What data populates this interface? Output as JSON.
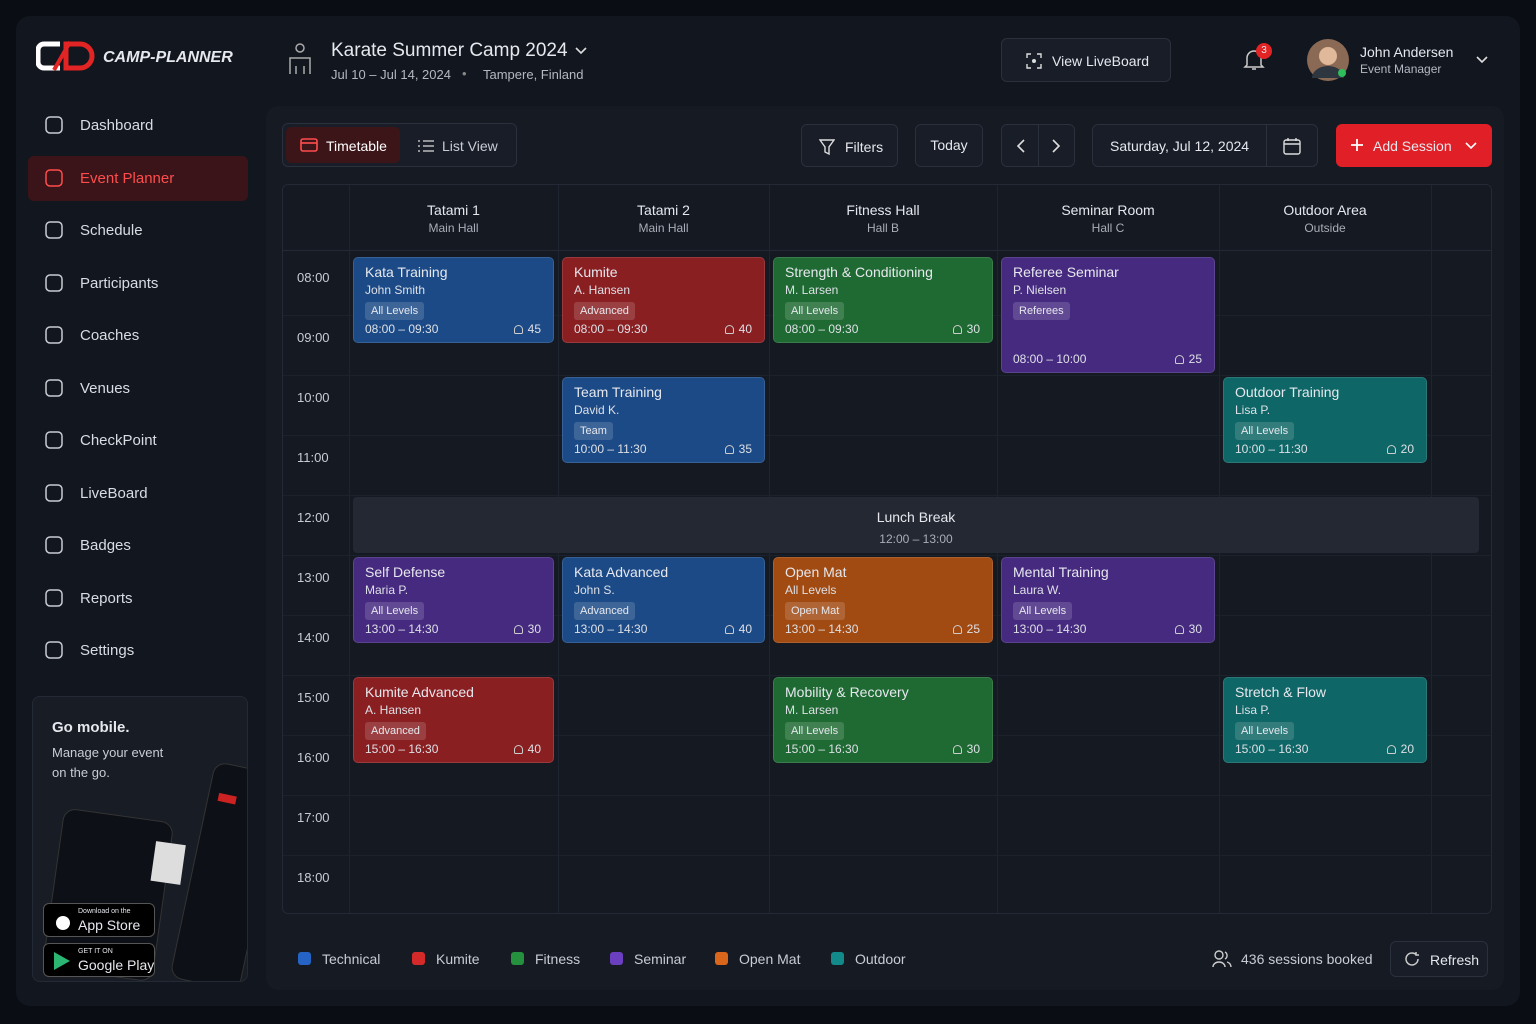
{
  "brand": "CAMP-PLANNER",
  "nav": [
    "Dashboard",
    "Event Planner",
    "Schedule",
    "Participants",
    "Coaches",
    "Venues",
    "CheckPoint",
    "LiveBoard",
    "Badges",
    "Reports",
    "Settings"
  ],
  "active_nav": 1,
  "promo": {
    "title": "Go mobile.",
    "text": "Manage your event on the go.",
    "app_store_small": "Download on the",
    "app_store": "App Store",
    "google_play_small": "GET IT ON",
    "google_play": "Google Play"
  },
  "header": {
    "event": "Karate Summer Camp 2024",
    "dates": "Jul 10 – Jul 14, 2024",
    "location": "Tampere, Finland",
    "liveboard": "View LiveBoard",
    "notifications": 3,
    "user": "John Andersen",
    "role": "Event Manager"
  },
  "toolbar": {
    "timetable": "Timetable",
    "list_view": "List View",
    "filters": "Filters",
    "today": "Today",
    "date": "Saturday, Jul 12, 2024",
    "add_session": "Add Session"
  },
  "times": [
    "08:00",
    "09:00",
    "10:00",
    "11:00",
    "12:00",
    "13:00",
    "14:00",
    "15:00",
    "16:00",
    "17:00",
    "18:00"
  ],
  "venues": [
    {
      "name": "Tatami 1",
      "sub": "Main Hall",
      "sessions": [
        {
          "title": "Kata Training",
          "coach": "John Smith",
          "level": "All Levels",
          "time": "08:00 – 09:30",
          "count": 45,
          "color": "#1c4a86"
        },
        {
          "title": "Self Defense",
          "coach": "Maria P.",
          "level": "All Levels",
          "time": "13:00 – 14:30",
          "count": 30,
          "color": "#462a80"
        },
        {
          "title": "Kumite Advanced",
          "coach": "A. Hansen",
          "level": "Advanced",
          "time": "15:00 – 16:30",
          "count": 40,
          "color": "#8a1f22"
        }
      ]
    },
    {
      "name": "Tatami 2",
      "sub": "Main Hall",
      "sessions": [
        {
          "title": "Kumite",
          "coach": "A. Hansen",
          "level": "Advanced",
          "time": "08:00 – 09:30",
          "count": 40,
          "color": "#8a1f22"
        },
        {
          "title": "Team Training",
          "coach": "David K.",
          "level": "Team",
          "time": "10:00 – 11:30",
          "count": 35,
          "color": "#1c4a86"
        },
        {
          "title": "Kata Advanced",
          "coach": "John S.",
          "level": "Advanced",
          "time": "13:00 – 14:30",
          "count": 40,
          "color": "#1c4a86"
        }
      ]
    },
    {
      "name": "Fitness Hall",
      "sub": "Hall B",
      "sessions": [
        {
          "title": "Strength & Conditioning",
          "coach": "M. Larsen",
          "level": "All Levels",
          "time": "08:00 – 09:30",
          "count": 30,
          "color": "#1f6a33"
        },
        {
          "title": "Open Mat",
          "coach": "All Levels",
          "level": "Open Mat",
          "time": "13:00 – 14:30",
          "count": 25,
          "color": "#a14a12"
        },
        {
          "title": "Mobility & Recovery",
          "coach": "M. Larsen",
          "level": "All Levels",
          "time": "15:00 – 16:30",
          "count": 30,
          "color": "#1f6a33"
        }
      ]
    },
    {
      "name": "Seminar Room",
      "sub": "Hall C",
      "sessions": [
        {
          "title": "Referee Seminar",
          "coach": "P. Nielsen",
          "level": "Referees",
          "time": "08:00 – 10:00",
          "count": 25,
          "color": "#462a80"
        },
        {
          "title": "Mental Training",
          "coach": "Laura W.",
          "level": "All Levels",
          "time": "13:00 – 14:30",
          "count": 30,
          "color": "#462a80"
        }
      ]
    },
    {
      "name": "Outdoor Area",
      "sub": "Outside",
      "sessions": [
        {
          "title": "Outdoor Training",
          "coach": "Lisa P.",
          "level": "All Levels",
          "time": "10:00 – 11:30",
          "count": 20,
          "color": "#0f6666"
        },
        {
          "title": "Stretch & Flow",
          "coach": "Lisa P.",
          "level": "All Levels",
          "time": "15:00 – 16:30",
          "count": 20,
          "color": "#0f6666"
        }
      ]
    }
  ],
  "lunch": {
    "title": "Lunch Break",
    "time": "12:00 – 13:00"
  },
  "legend": [
    {
      "name": "Technical",
      "color": "#2563c4"
    },
    {
      "name": "Kumite",
      "color": "#d42a2a"
    },
    {
      "name": "Fitness",
      "color": "#25913f"
    },
    {
      "name": "Seminar",
      "color": "#6a3fc0"
    },
    {
      "name": "Open Mat",
      "color": "#d9661a"
    },
    {
      "name": "Outdoor",
      "color": "#138a8a"
    }
  ],
  "footer": {
    "sessions": "436 sessions booked",
    "refresh": "Refresh"
  }
}
